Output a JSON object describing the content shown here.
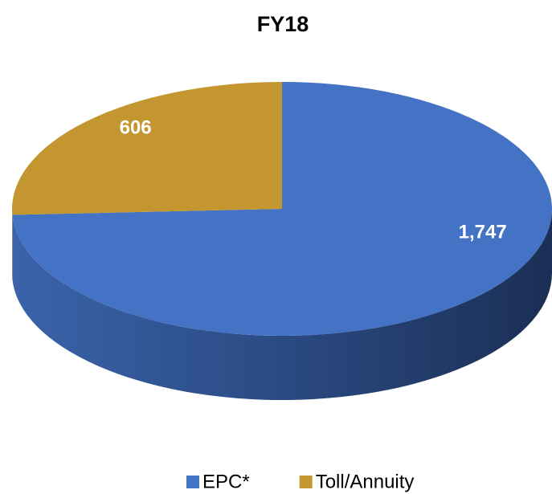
{
  "chart_data": {
    "type": "pie",
    "title": "FY18",
    "categories": [
      "EPC*",
      "Toll/Annuity"
    ],
    "values": [
      1747,
      606
    ],
    "value_labels": [
      "1,747",
      "606"
    ],
    "colors": [
      "#4472c4",
      "#c3962f"
    ],
    "legend": "bottom"
  }
}
